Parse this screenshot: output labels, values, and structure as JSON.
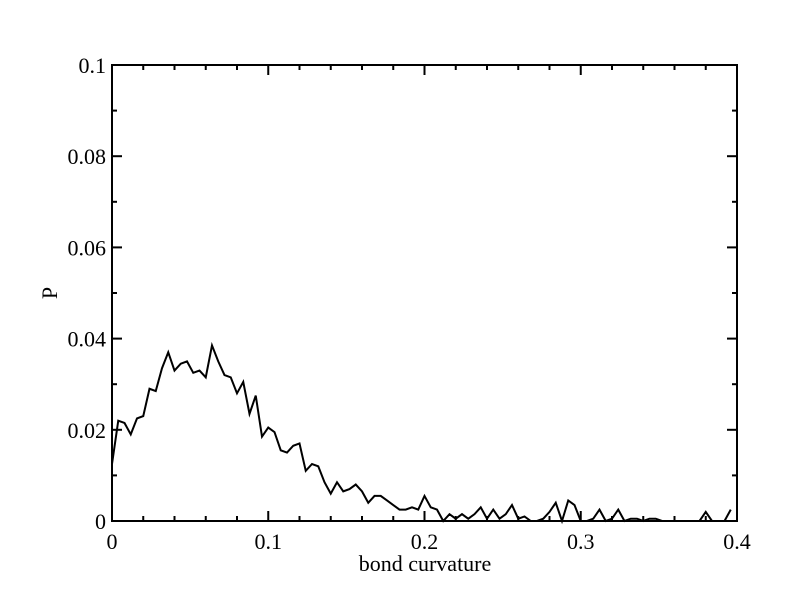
{
  "chart_data": {
    "type": "line",
    "title": "",
    "xlabel": "bond curvature",
    "ylabel": "P",
    "xlim": [
      0,
      0.4
    ],
    "ylim": [
      0,
      0.1
    ],
    "x_ticks": [
      0,
      0.1,
      0.2,
      0.3,
      0.4
    ],
    "x_tick_labels": [
      "0",
      "0.1",
      "0.2",
      "0.3",
      "0.4"
    ],
    "x_minor_step": 0.02,
    "y_ticks": [
      0,
      0.02,
      0.04,
      0.06,
      0.08,
      0.1
    ],
    "y_tick_labels": [
      "0",
      "0.02",
      "0.04",
      "0.06",
      "0.08",
      "0.1"
    ],
    "y_minor_step": 0.01,
    "grid": false,
    "legend": "none",
    "line_color": "#000000",
    "series": [
      {
        "x": [
          0.0,
          0.004,
          0.008,
          0.012,
          0.016,
          0.02,
          0.024,
          0.028,
          0.032,
          0.036,
          0.04,
          0.044,
          0.048,
          0.052,
          0.056,
          0.06,
          0.064,
          0.068,
          0.072,
          0.076,
          0.08,
          0.084,
          0.088,
          0.092,
          0.096,
          0.1,
          0.104,
          0.108,
          0.112,
          0.116,
          0.12,
          0.124,
          0.128,
          0.132,
          0.136,
          0.14,
          0.144,
          0.148,
          0.152,
          0.156,
          0.16,
          0.164,
          0.168,
          0.172,
          0.176,
          0.18,
          0.184,
          0.188,
          0.192,
          0.196,
          0.2,
          0.204,
          0.208,
          0.212,
          0.216,
          0.22,
          0.224,
          0.228,
          0.232,
          0.236,
          0.24,
          0.244,
          0.248,
          0.252,
          0.256,
          0.26,
          0.264,
          0.268,
          0.272,
          0.276,
          0.28,
          0.284,
          0.288,
          0.292,
          0.296,
          0.3,
          0.304,
          0.308,
          0.312,
          0.316,
          0.32,
          0.324,
          0.328,
          0.332,
          0.336,
          0.34,
          0.344,
          0.348,
          0.352,
          0.356,
          0.36,
          0.364,
          0.368,
          0.372,
          0.376,
          0.38,
          0.384,
          0.388,
          0.392,
          0.396
        ],
        "values": [
          0.0125,
          0.022,
          0.0215,
          0.019,
          0.0225,
          0.023,
          0.029,
          0.0285,
          0.0335,
          0.037,
          0.033,
          0.0345,
          0.035,
          0.0325,
          0.033,
          0.0315,
          0.0385,
          0.035,
          0.032,
          0.0315,
          0.028,
          0.0305,
          0.0235,
          0.0275,
          0.0185,
          0.0205,
          0.0195,
          0.0155,
          0.015,
          0.0165,
          0.017,
          0.011,
          0.0125,
          0.012,
          0.0085,
          0.006,
          0.0085,
          0.0065,
          0.007,
          0.008,
          0.0065,
          0.004,
          0.0055,
          0.0055,
          0.0045,
          0.0035,
          0.0025,
          0.0025,
          0.003,
          0.0025,
          0.0055,
          0.003,
          0.0025,
          0.0,
          0.0015,
          0.0005,
          0.0015,
          0.0005,
          0.0015,
          0.003,
          0.0005,
          0.0025,
          0.0005,
          0.0015,
          0.0035,
          0.0005,
          0.001,
          0.0,
          0.0,
          0.0005,
          0.002,
          0.004,
          0.0,
          0.0045,
          0.0035,
          0.0,
          0.0,
          0.0005,
          0.0025,
          0.0,
          0.0005,
          0.0025,
          0.0,
          0.0005,
          0.0005,
          0.0,
          0.0005,
          0.0005,
          0.0,
          0.0,
          0.0,
          0.0,
          0.0,
          0.0,
          0.0,
          0.002,
          0.0,
          0.0,
          0.0,
          0.0025
        ]
      }
    ]
  }
}
